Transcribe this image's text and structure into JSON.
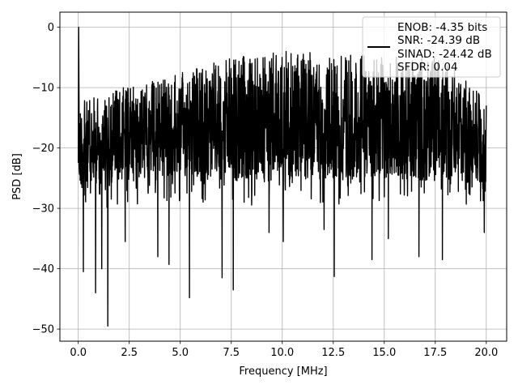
{
  "chart_data": {
    "type": "line",
    "xlabel": "Frequency [MHz]",
    "ylabel": "PSD [dB]",
    "xlim": [
      -0.9,
      21.0
    ],
    "ylim": [
      -52.0,
      2.5
    ],
    "xticks": [
      0.0,
      2.5,
      5.0,
      7.5,
      10.0,
      12.5,
      15.0,
      17.5,
      20.0
    ],
    "xtick_labels": [
      "0.0",
      "2.5",
      "5.0",
      "7.5",
      "10.0",
      "12.5",
      "15.0",
      "17.5",
      "20.0"
    ],
    "yticks": [
      0,
      -10,
      -20,
      -30,
      -40,
      -50
    ],
    "ytick_labels": [
      "0",
      "−10",
      "−20",
      "−30",
      "−40",
      "−50"
    ],
    "grid": true,
    "legend_position": "top-right",
    "series": [
      {
        "color": "#000000",
        "x_range": [
          0.0,
          20.0
        ],
        "peak": {
          "x": 0.02,
          "y": 0.0
        },
        "upper_envelope": [
          {
            "x": 0.1,
            "y": -12
          },
          {
            "x": 0.5,
            "y": -12
          },
          {
            "x": 1.0,
            "y": -11
          },
          {
            "x": 2.5,
            "y": -9.5
          },
          {
            "x": 5.0,
            "y": -7.5
          },
          {
            "x": 7.5,
            "y": -5
          },
          {
            "x": 10.0,
            "y": -4
          },
          {
            "x": 12.5,
            "y": -4
          },
          {
            "x": 15.0,
            "y": -5
          },
          {
            "x": 17.5,
            "y": -4
          },
          {
            "x": 20.0,
            "y": -12
          }
        ],
        "lower_envelope": [
          {
            "x": 0.1,
            "y": -27
          },
          {
            "x": 1.0,
            "y": -26
          },
          {
            "x": 2.5,
            "y": -25.5
          },
          {
            "x": 5.0,
            "y": -25
          },
          {
            "x": 7.5,
            "y": -25.5
          },
          {
            "x": 10.0,
            "y": -25.5
          },
          {
            "x": 12.5,
            "y": -25.5
          },
          {
            "x": 15.0,
            "y": -25
          },
          {
            "x": 17.5,
            "y": -25.5
          },
          {
            "x": 20.0,
            "y": -26
          }
        ],
        "deep_dips": [
          {
            "x": 1.45,
            "y": -49.5
          },
          {
            "x": 5.45,
            "y": -44.8
          },
          {
            "x": 7.6,
            "y": -43.5
          },
          {
            "x": 0.85,
            "y": -44
          },
          {
            "x": 12.55,
            "y": -41.3
          },
          {
            "x": 0.25,
            "y": -40.5
          },
          {
            "x": 4.45,
            "y": -39.3
          },
          {
            "x": 1.15,
            "y": -40
          },
          {
            "x": 7.05,
            "y": -41.5
          },
          {
            "x": 14.4,
            "y": -38.5
          },
          {
            "x": 16.7,
            "y": -38
          },
          {
            "x": 17.85,
            "y": -38.5
          },
          {
            "x": 3.9,
            "y": -38
          },
          {
            "x": 2.3,
            "y": -35.5
          },
          {
            "x": 10.05,
            "y": -35.5
          },
          {
            "x": 15.2,
            "y": -35
          },
          {
            "x": 12.05,
            "y": -33.5
          },
          {
            "x": 9.35,
            "y": -34
          },
          {
            "x": 19.9,
            "y": -34
          }
        ]
      }
    ],
    "legend": {
      "lines": [
        "ENOB: -4.35 bits",
        "SNR: -24.39 dB",
        "SINAD: -24.42 dB",
        "SFDR: 0.04"
      ]
    }
  }
}
